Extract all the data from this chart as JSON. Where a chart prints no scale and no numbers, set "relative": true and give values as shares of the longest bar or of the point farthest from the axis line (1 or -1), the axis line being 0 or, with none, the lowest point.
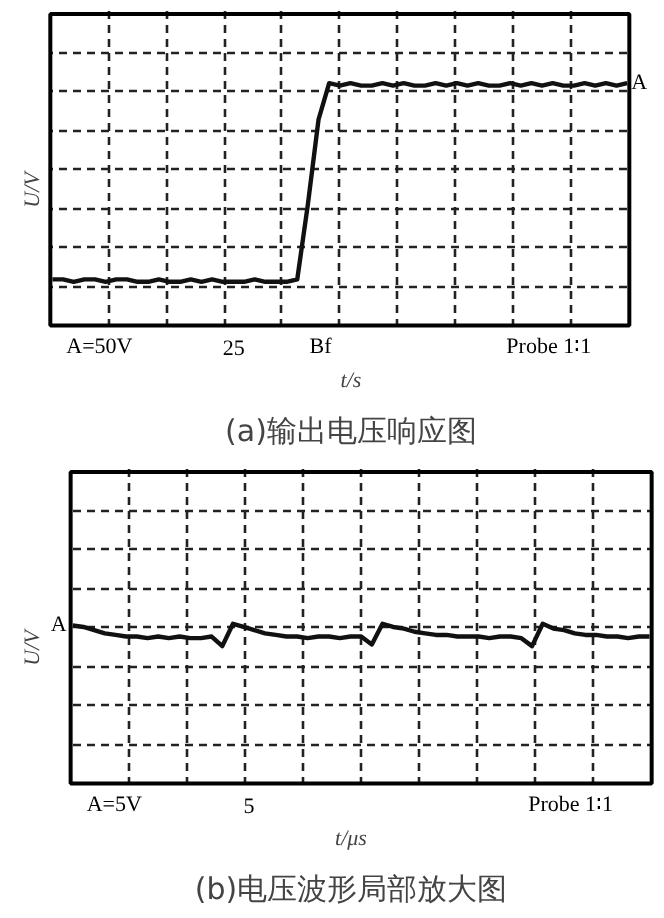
{
  "chart_data": [
    {
      "type": "line",
      "title": "(a)输出电压响应图",
      "xlabel": "t/s",
      "ylabel": "U/V",
      "relative": true,
      "grid": true,
      "categories": [
        null,
        null,
        null,
        null,
        null,
        null,
        null,
        null,
        null,
        null,
        null,
        null,
        null,
        null,
        null,
        null,
        null,
        null,
        null,
        null,
        null,
        null,
        null,
        null,
        null,
        null,
        null,
        null,
        null,
        null,
        null,
        null,
        null,
        null,
        null,
        null,
        null,
        null,
        null,
        null,
        null,
        null,
        null,
        null,
        null,
        null,
        null,
        null,
        null,
        null,
        null,
        null,
        null,
        null,
        null
      ],
      "series": [
        {
          "color": "#111111",
          "values": [
            0.19,
            0.19,
            0.18,
            0.19,
            0.19,
            0.18,
            0.19,
            0.19,
            0.18,
            0.18,
            0.19,
            0.18,
            0.18,
            0.19,
            0.18,
            0.19,
            0.18,
            0.18,
            0.18,
            0.19,
            0.18,
            0.18,
            0.18,
            0.19,
            0.5,
            0.85,
            1.0,
            0.99,
            1.0,
            0.99,
            0.99,
            1.0,
            0.99,
            1.0,
            0.99,
            0.99,
            1.0,
            0.99,
            1.0,
            0.99,
            1.0,
            0.99,
            0.99,
            1.0,
            0.99,
            1.0,
            0.99,
            1.0,
            0.99,
            0.99,
            1.0,
            0.99,
            1.0,
            0.99,
            1.0
          ]
        }
      ],
      "annotations": [
        "A",
        "A=50V",
        "25",
        "Bf",
        "Probe 1∶1"
      ]
    },
    {
      "type": "line",
      "title": "(b)电压波形局部放大图",
      "xlabel": "t/μs",
      "ylabel": "U/V",
      "relative": true,
      "grid": true,
      "categories": [
        null,
        null,
        null,
        null,
        null,
        null,
        null,
        null,
        null,
        null,
        null,
        null,
        null,
        null,
        null,
        null,
        null,
        null,
        null,
        null,
        null,
        null,
        null,
        null,
        null,
        null,
        null,
        null,
        null,
        null,
        null,
        null,
        null,
        null,
        null,
        null,
        null,
        null,
        null,
        null,
        null,
        null,
        null,
        null,
        null,
        null,
        null,
        null,
        null,
        null,
        null,
        null,
        null,
        null,
        null
      ],
      "series": [
        {
          "color": "#111111",
          "values": [
            0.99,
            0.98,
            0.96,
            0.94,
            0.93,
            0.92,
            0.92,
            0.91,
            0.92,
            0.91,
            0.92,
            0.91,
            0.91,
            0.92,
            0.86,
            1.0,
            0.98,
            0.96,
            0.94,
            0.93,
            0.92,
            0.92,
            0.91,
            0.92,
            0.92,
            0.91,
            0.92,
            0.92,
            0.87,
            1.0,
            0.98,
            0.97,
            0.95,
            0.94,
            0.93,
            0.93,
            0.92,
            0.92,
            0.92,
            0.91,
            0.92,
            0.92,
            0.91,
            0.86,
            1.0,
            0.97,
            0.96,
            0.94,
            0.93,
            0.93,
            0.92,
            0.92,
            0.91,
            0.92,
            0.92
          ]
        }
      ],
      "annotations": [
        "A",
        "A=5V",
        "5",
        "Probe 1∶1"
      ]
    }
  ]
}
